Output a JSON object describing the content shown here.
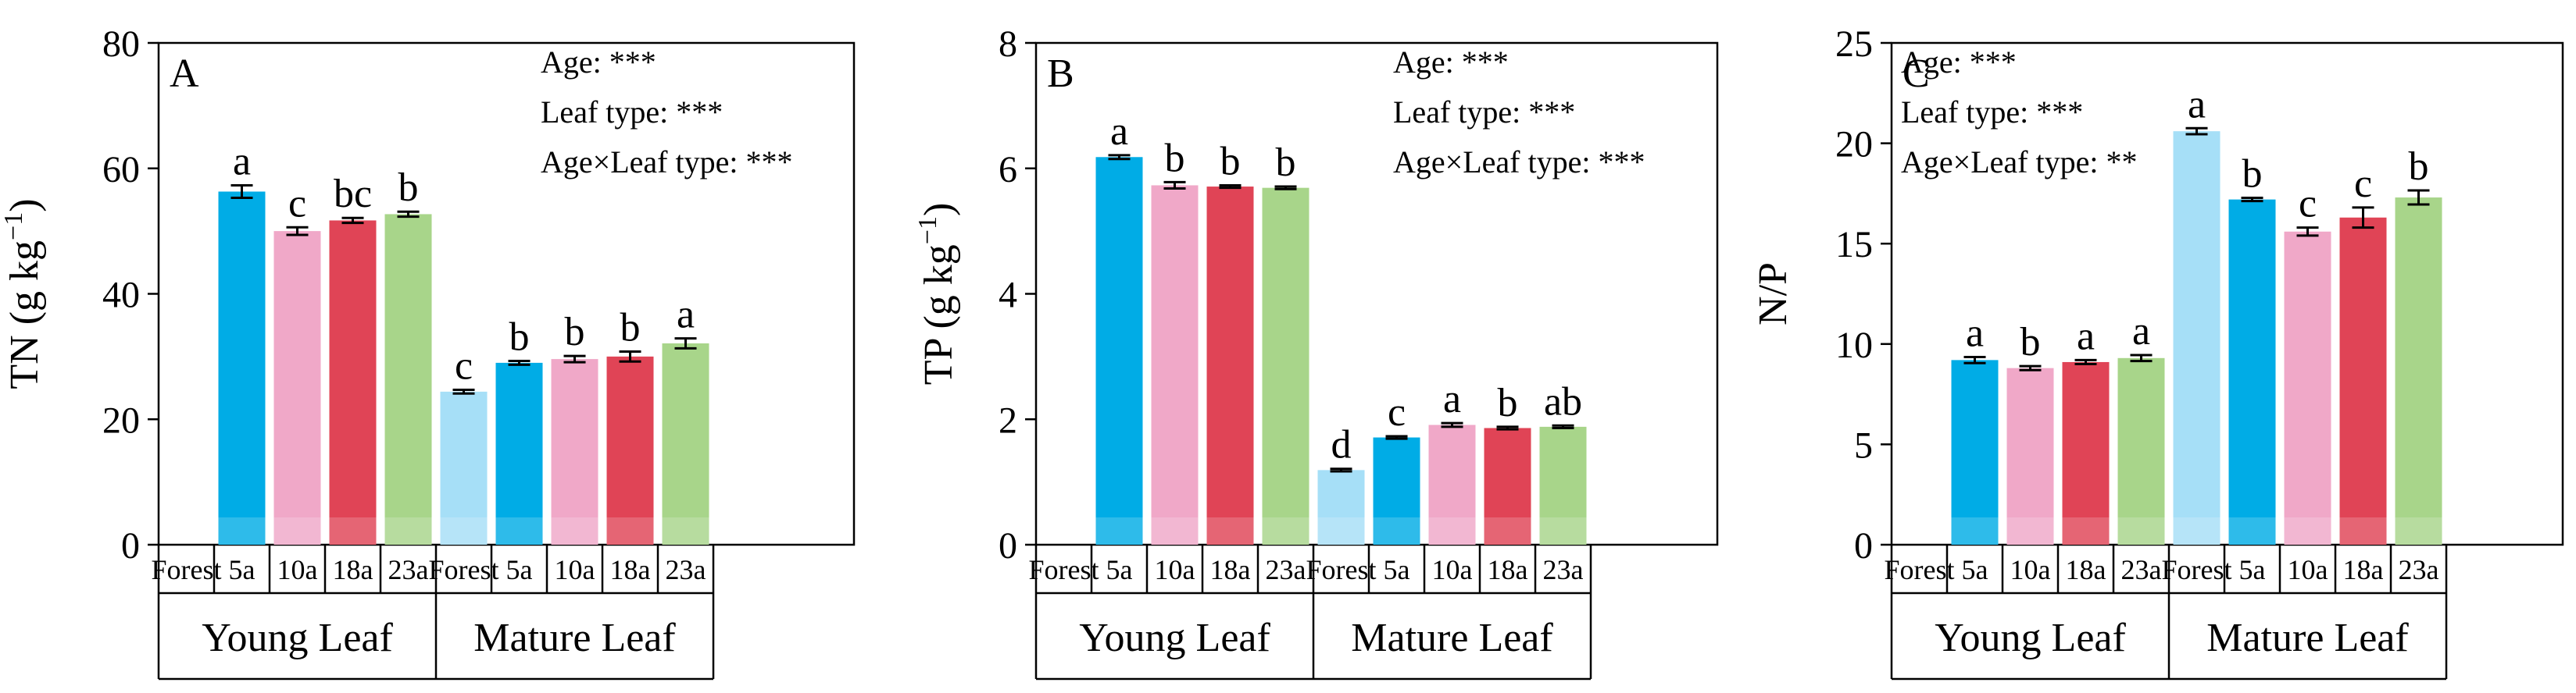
{
  "colors": {
    "forest": "#a6dff7",
    "y5": "#00ace6",
    "y10": "#f0a8c8",
    "y18": "#e04456",
    "y23": "#a8d58a"
  },
  "chart_data": [
    {
      "type": "bar",
      "panel": "A",
      "ylabel": "TN (g kg",
      "ylabel_sup": "−1",
      "ylabel_close": ")",
      "ylim": [
        0,
        80
      ],
      "yticks": [
        "0",
        "20",
        "40",
        "60",
        "80"
      ],
      "stats": [
        "Age: ***",
        "Leaf type: ***",
        "Age×Leaf type: ***"
      ],
      "stats_position": "top-right",
      "categories": [
        "Forest",
        "5a",
        "10a",
        "18a",
        "23a",
        "Forest",
        "5a",
        "10a",
        "18a",
        "23a"
      ],
      "groups": [
        "Young Leaf",
        "Mature Leaf"
      ],
      "values": [
        null,
        56.3,
        50.0,
        51.7,
        52.7,
        24.4,
        29.0,
        29.6,
        30.0,
        32.1
      ],
      "errors": [
        null,
        1.0,
        0.6,
        0.4,
        0.4,
        0.3,
        0.3,
        0.5,
        0.8,
        0.8
      ],
      "letters": [
        "",
        "a",
        "c",
        "bc",
        "b",
        "c",
        "b",
        "b",
        "b",
        "a"
      ]
    },
    {
      "type": "bar",
      "panel": "B",
      "ylabel": "TP (g kg",
      "ylabel_sup": "−1",
      "ylabel_close": ")",
      "ylim": [
        0,
        8
      ],
      "yticks": [
        "0",
        "2",
        "4",
        "6",
        "8"
      ],
      "stats": [
        "Age: ***",
        "Leaf type: ***",
        "Age×Leaf type: ***"
      ],
      "stats_position": "top-right",
      "categories": [
        "Forest",
        "5a",
        "10a",
        "18a",
        "23a",
        "Forest",
        "5a",
        "10a",
        "18a",
        "23a"
      ],
      "groups": [
        "Young Leaf",
        "Mature Leaf"
      ],
      "values": [
        null,
        6.18,
        5.73,
        5.71,
        5.69,
        1.19,
        1.71,
        1.91,
        1.86,
        1.88
      ],
      "errors": [
        null,
        0.03,
        0.05,
        0.02,
        0.02,
        0.02,
        0.02,
        0.03,
        0.02,
        0.02
      ],
      "letters": [
        "",
        "a",
        "b",
        "b",
        "b",
        "d",
        "c",
        "a",
        "b",
        "ab"
      ]
    },
    {
      "type": "bar",
      "panel": "C",
      "ylabel": "N/P",
      "ylabel_sup": "",
      "ylabel_close": "",
      "ylim": [
        0,
        25
      ],
      "yticks": [
        "0",
        "5",
        "10",
        "15",
        "20",
        "25"
      ],
      "stats": [
        "Age: ***",
        "Leaf type: ***",
        "Age×Leaf type: **"
      ],
      "stats_position": "top-left",
      "categories": [
        "Forest",
        "5a",
        "10a",
        "18a",
        "23a",
        "Forest",
        "5a",
        "10a",
        "18a",
        "23a"
      ],
      "groups": [
        "Young Leaf",
        "Mature Leaf"
      ],
      "values": [
        null,
        9.2,
        8.8,
        9.1,
        9.3,
        20.6,
        17.2,
        15.6,
        16.3,
        17.3
      ],
      "errors": [
        null,
        0.15,
        0.1,
        0.1,
        0.15,
        0.15,
        0.08,
        0.2,
        0.5,
        0.35
      ],
      "letters": [
        "",
        "a",
        "b",
        "a",
        "a",
        "a",
        "b",
        "c",
        "c",
        "b"
      ]
    }
  ]
}
